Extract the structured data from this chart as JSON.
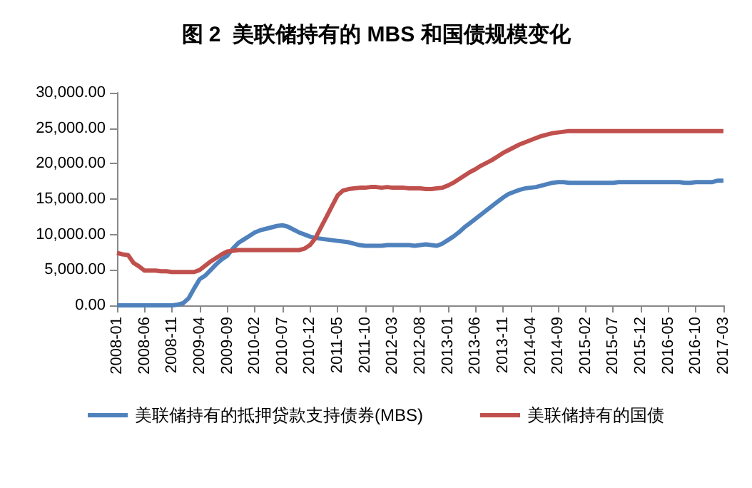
{
  "chart_data": {
    "type": "line",
    "title": "图 2  美联储持有的 MBS 和国债规模变化",
    "categories": [
      "2008-01",
      null,
      null,
      null,
      null,
      "2008-06",
      null,
      null,
      null,
      null,
      "2008-11",
      null,
      null,
      null,
      null,
      "2009-04",
      null,
      null,
      null,
      null,
      "2009-09",
      null,
      null,
      null,
      null,
      "2010-02",
      null,
      null,
      null,
      null,
      "2010-07",
      null,
      null,
      null,
      null,
      "2010-12",
      null,
      null,
      null,
      null,
      "2011-05",
      null,
      null,
      null,
      null,
      "2011-10",
      null,
      null,
      null,
      null,
      "2012-03",
      null,
      null,
      null,
      null,
      "2012-08",
      null,
      null,
      null,
      null,
      "2013-01",
      null,
      null,
      null,
      null,
      "2013-06",
      null,
      null,
      null,
      null,
      "2013-11",
      null,
      null,
      null,
      null,
      "2014-04",
      null,
      null,
      null,
      null,
      "2014-09",
      null,
      null,
      null,
      null,
      "2015-02",
      null,
      null,
      null,
      null,
      "2015-07",
      null,
      null,
      null,
      null,
      "2015-12",
      null,
      null,
      null,
      null,
      "2016-05",
      null,
      null,
      null,
      null,
      "2016-10",
      null,
      null,
      null,
      null,
      "2017-03"
    ],
    "series": [
      {
        "name": "美联储持有的抵押贷款支持债券(MBS)",
        "color": "#4f81bd",
        "values": [
          0,
          0,
          0,
          0,
          0,
          0,
          0,
          0,
          0,
          0,
          0,
          100,
          300,
          1000,
          2400,
          3700,
          4200,
          5000,
          5800,
          6500,
          7000,
          8000,
          8800,
          9300,
          9800,
          10300,
          10600,
          10800,
          11000,
          11200,
          11300,
          11100,
          10700,
          10300,
          10000,
          9700,
          9500,
          9400,
          9300,
          9200,
          9100,
          9000,
          8900,
          8700,
          8500,
          8400,
          8400,
          8400,
          8400,
          8500,
          8500,
          8500,
          8500,
          8500,
          8400,
          8500,
          8600,
          8500,
          8400,
          8700,
          9200,
          9700,
          10300,
          11000,
          11600,
          12200,
          12800,
          13400,
          14000,
          14600,
          15200,
          15700,
          16000,
          16300,
          16500,
          16600,
          16700,
          16900,
          17100,
          17300,
          17400,
          17400,
          17300,
          17300,
          17300,
          17300,
          17300,
          17300,
          17300,
          17300,
          17300,
          17400,
          17400,
          17400,
          17400,
          17400,
          17400,
          17400,
          17400,
          17400,
          17400,
          17400,
          17400,
          17300,
          17300,
          17400,
          17400,
          17400,
          17400,
          17600,
          17600
        ]
      },
      {
        "name": "美联储持有的国债",
        "color": "#c0504d",
        "values": [
          7400,
          7200,
          7100,
          6000,
          5500,
          4900,
          4900,
          4900,
          4800,
          4800,
          4700,
          4700,
          4700,
          4700,
          4700,
          5000,
          5600,
          6200,
          6700,
          7200,
          7600,
          7700,
          7800,
          7800,
          7800,
          7800,
          7800,
          7800,
          7800,
          7800,
          7800,
          7800,
          7800,
          7800,
          8000,
          8500,
          9500,
          11000,
          12500,
          14000,
          15500,
          16200,
          16400,
          16500,
          16600,
          16600,
          16700,
          16700,
          16600,
          16700,
          16600,
          16600,
          16600,
          16500,
          16500,
          16500,
          16400,
          16400,
          16500,
          16600,
          16900,
          17300,
          17800,
          18300,
          18800,
          19200,
          19700,
          20100,
          20500,
          21000,
          21500,
          21900,
          22300,
          22700,
          23000,
          23300,
          23600,
          23900,
          24100,
          24300,
          24400,
          24500,
          24600,
          24600,
          24600,
          24600,
          24600,
          24600,
          24600,
          24600,
          24600,
          24600,
          24600,
          24600,
          24600,
          24600,
          24600,
          24600,
          24600,
          24600,
          24600,
          24600,
          24600,
          24600,
          24600,
          24600,
          24600,
          24600,
          24600,
          24600,
          24600
        ]
      }
    ],
    "ylim": [
      0,
      30000
    ],
    "yticks": [
      {
        "value": 0,
        "label": "0.00"
      },
      {
        "value": 5000,
        "label": "5,000.00"
      },
      {
        "value": 10000,
        "label": "10,000.00"
      },
      {
        "value": 15000,
        "label": "15,000.00"
      },
      {
        "value": 20000,
        "label": "20,000.00"
      },
      {
        "value": 25000,
        "label": "25,000.00"
      },
      {
        "value": 30000,
        "label": "30,000.00"
      }
    ],
    "grid": false,
    "legend": "bottom",
    "marker": "none",
    "line_style": "solid"
  }
}
